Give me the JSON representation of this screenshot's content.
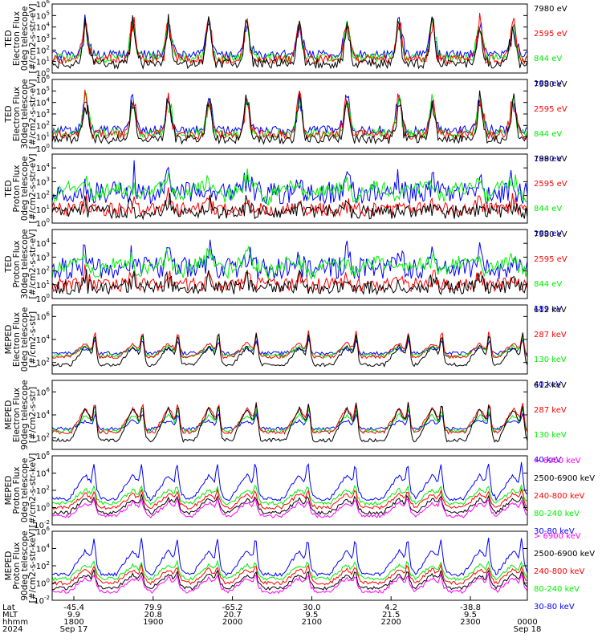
{
  "colors": {
    "black": "#000000",
    "red": "#ff0000",
    "green": "#00ee00",
    "blue": "#0000ff",
    "magenta": "#ff00ff"
  },
  "chart_data": {
    "type": "line",
    "x_time_start": "1800",
    "x_time_end": "0000",
    "x_axis_rows": [
      {
        "label": "Lat",
        "values": [
          "-45.4",
          "79.9",
          "-65.2",
          "30.0",
          "4.2",
          "-38.8",
          ""
        ]
      },
      {
        "label": "MLT",
        "values": [
          "9.9",
          "20.8",
          "20.7",
          "9.5",
          "21.5",
          "9.5",
          ""
        ]
      },
      {
        "label": "hhmm",
        "values": [
          "1800",
          "1900",
          "2000",
          "2100",
          "2200",
          "2300",
          "0000"
        ]
      },
      {
        "label": "2024",
        "values": [
          "Sep 17",
          "",
          "",
          "",
          "",
          "",
          "Sep 18"
        ]
      }
    ],
    "panels": [
      {
        "ylabel": [
          "TED",
          "Electron Flux",
          "0deg telescope",
          "[#/cm2-s-str-eV]"
        ],
        "ymin": 0,
        "ymax": 6,
        "tick_exps": [
          0,
          1,
          2,
          3,
          4,
          5,
          6
        ],
        "legend": [
          {
            "text": "7980 eV",
            "color": "#000000"
          },
          {
            "text": "2595 eV",
            "color": "#ff0000"
          },
          {
            "text": "844 eV",
            "color": "#00ee00"
          },
          {
            "text": "189 eV",
            "color": "#0000ff"
          }
        ],
        "kind": "ted_e"
      },
      {
        "ylabel": [
          "TED",
          "Electron Flux",
          "30deg telescope",
          "[#/cm2-s-str-eV]"
        ],
        "ymin": 0,
        "ymax": 6,
        "tick_exps": [
          0,
          1,
          2,
          3,
          4,
          5,
          6
        ],
        "legend": [
          {
            "text": "7980 eV",
            "color": "#000000"
          },
          {
            "text": "2595 eV",
            "color": "#ff0000"
          },
          {
            "text": "844 eV",
            "color": "#00ee00"
          },
          {
            "text": "189 eV",
            "color": "#0000ff"
          }
        ],
        "kind": "ted_e2"
      },
      {
        "ylabel": [
          "TED",
          "Proton Flux",
          "0deg telescope",
          "[#/cm2-s-str-eV]"
        ],
        "ymin": 0,
        "ymax": 5,
        "tick_exps": [
          0,
          1,
          2,
          3,
          4
        ],
        "legend": [
          {
            "text": "7980 eV",
            "color": "#000000"
          },
          {
            "text": "2595 eV",
            "color": "#ff0000"
          },
          {
            "text": "844 eV",
            "color": "#00ee00"
          },
          {
            "text": "189 eV",
            "color": "#0000ff"
          }
        ],
        "kind": "ted_p"
      },
      {
        "ylabel": [
          "TED",
          "Proton Flux",
          "30deg telescope",
          "[#/cm2-s-str-eV]"
        ],
        "ymin": 0,
        "ymax": 5,
        "tick_exps": [
          0,
          1,
          2,
          3,
          4
        ],
        "legend": [
          {
            "text": "7980 eV",
            "color": "#000000"
          },
          {
            "text": "2595 eV",
            "color": "#ff0000"
          },
          {
            "text": "844 eV",
            "color": "#00ee00"
          },
          {
            "text": "189 eV",
            "color": "#0000ff"
          }
        ],
        "kind": "ted_p2"
      },
      {
        "ylabel": [
          "MEPED",
          "Electron Flux",
          "0deg telescope",
          "[#/cm2-s-str]"
        ],
        "ymin": 1,
        "ymax": 7,
        "tick_exps": [
          2,
          4,
          6
        ],
        "legend": [
          {
            "text": "612 keV",
            "color": "#000000"
          },
          {
            "text": "287 keV",
            "color": "#ff0000"
          },
          {
            "text": "130 keV",
            "color": "#00ee00"
          },
          {
            "text": "40 keV",
            "color": "#0000ff"
          }
        ],
        "kind": "mep_e"
      },
      {
        "ylabel": [
          "MEPED",
          "Electron Flux",
          "90deg telescope",
          "[#/cm2-s-str]"
        ],
        "ymin": 1,
        "ymax": 7,
        "tick_exps": [
          2,
          4,
          6
        ],
        "legend": [
          {
            "text": "612 keV",
            "color": "#000000"
          },
          {
            "text": "287 keV",
            "color": "#ff0000"
          },
          {
            "text": "130 keV",
            "color": "#00ee00"
          },
          {
            "text": "40 keV",
            "color": "#0000ff"
          }
        ],
        "kind": "mep_e2"
      },
      {
        "ylabel": [
          "MEPED",
          "Proton Flux",
          "0deg telescope",
          "[#/cm2-s-str-keV]"
        ],
        "ymin": -2,
        "ymax": 6,
        "tick_exps": [
          -2,
          0,
          2,
          4,
          6
        ],
        "legend": [
          {
            "text": "> 6900 keV",
            "color": "#ff00ff"
          },
          {
            "text": "2500-6900 keV",
            "color": "#000000"
          },
          {
            "text": "240-800 keV",
            "color": "#ff0000"
          },
          {
            "text": "80-240 keV",
            "color": "#00ee00"
          },
          {
            "text": "30-80 keV",
            "color": "#0000ff"
          }
        ],
        "kind": "mep_p"
      },
      {
        "ylabel": [
          "MEPED",
          "Proton Flux",
          "90deg telescope",
          "[#/cm2-s-str-keV]"
        ],
        "ymin": -2,
        "ymax": 6,
        "tick_exps": [
          -2,
          0,
          2,
          4,
          6
        ],
        "legend": [
          {
            "text": "> 6900 keV",
            "color": "#ff00ff"
          },
          {
            "text": "2500-6900 keV",
            "color": "#000000"
          },
          {
            "text": "240-800 keV",
            "color": "#ff0000"
          },
          {
            "text": "80-240 keV",
            "color": "#00ee00"
          },
          {
            "text": "30-80 keV",
            "color": "#0000ff"
          }
        ],
        "kind": "mep_p2"
      }
    ]
  }
}
